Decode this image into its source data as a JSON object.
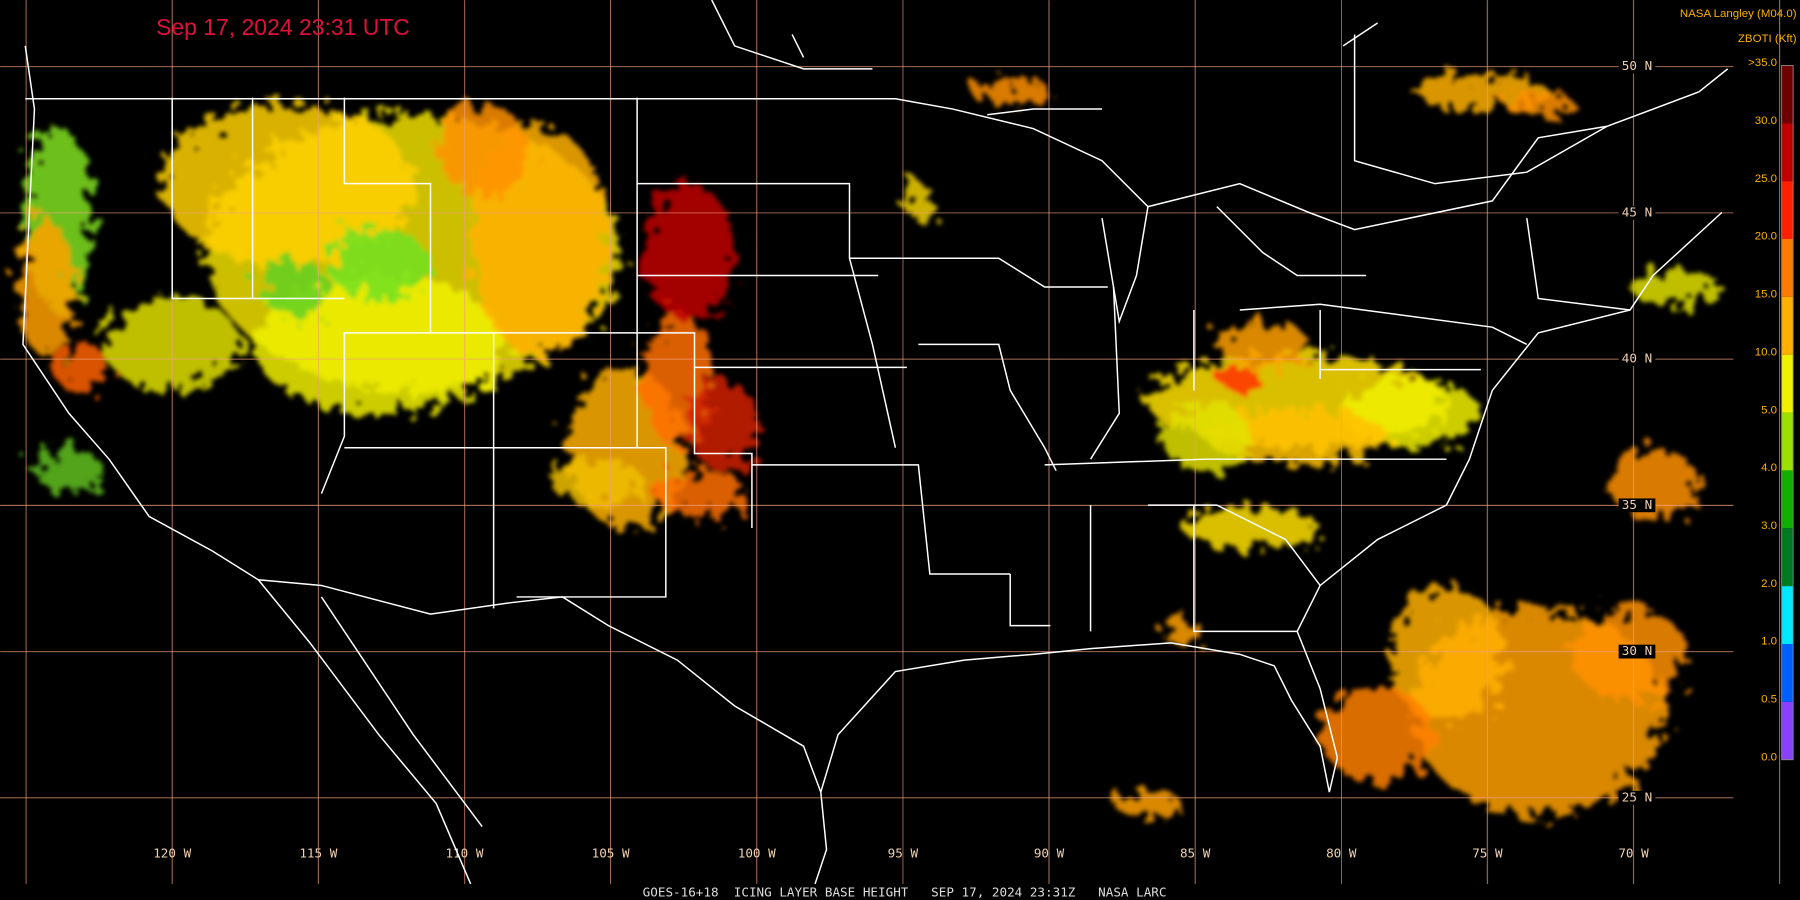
{
  "header": {
    "timestamp": "Sep 17, 2024 23:31 UTC",
    "source": "NASA Langley (M04.0)",
    "footer": "GOES-16+18  ICING LAYER BASE HEIGHT   SEP 17, 2024 23:31Z   NASA LARC"
  },
  "legend": {
    "title": "ZBOTI (Kft)",
    "labels": [
      ">35.0",
      "30.0",
      "25.0",
      "20.0",
      "15.0",
      "10.0",
      "5.0",
      "4.0",
      "3.0",
      "2.0",
      "1.0",
      "0.5",
      "0.0"
    ],
    "colors": [
      "#6e0000",
      "#c00000",
      "#ff2000",
      "#ff7a00",
      "#ffb000",
      "#f0f000",
      "#9ae000",
      "#10b000",
      "#007a20",
      "#00e8ff",
      "#0060ff",
      "#8a40ff"
    ]
  },
  "map": {
    "longitude_labels": [
      "120 W",
      "115 W",
      "110 W",
      "105 W",
      "100 W",
      "95 W",
      "90 W",
      "85 W",
      "80 W",
      "75 W",
      "70 W"
    ],
    "latitude_labels": [
      "50 N",
      "45 N",
      "40 N",
      "35 N",
      "30 N",
      "25 N"
    ]
  }
}
